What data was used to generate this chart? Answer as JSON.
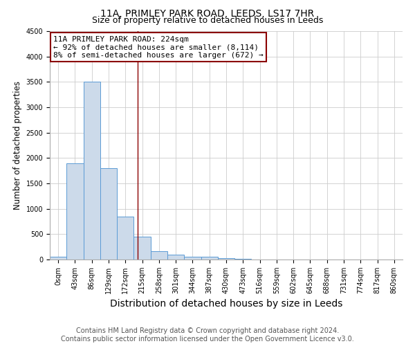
{
  "title": "11A, PRIMLEY PARK ROAD, LEEDS, LS17 7HR",
  "subtitle": "Size of property relative to detached houses in Leeds",
  "xlabel": "Distribution of detached houses by size in Leeds",
  "ylabel": "Number of detached properties",
  "categories": [
    "0sqm",
    "43sqm",
    "86sqm",
    "129sqm",
    "172sqm",
    "215sqm",
    "258sqm",
    "301sqm",
    "344sqm",
    "387sqm",
    "430sqm",
    "473sqm",
    "516sqm",
    "559sqm",
    "602sqm",
    "645sqm",
    "688sqm",
    "731sqm",
    "774sqm",
    "817sqm",
    "860sqm"
  ],
  "values": [
    50,
    1900,
    3500,
    1800,
    850,
    450,
    160,
    100,
    60,
    50,
    30,
    20,
    0,
    0,
    0,
    0,
    0,
    0,
    0,
    0,
    0
  ],
  "bar_color": "#ccdaea",
  "bar_edge_color": "#5b9bd5",
  "vline_x_idx": 5.23,
  "vline_color": "#8b0000",
  "annotation_text": "11A PRIMLEY PARK ROAD: 224sqm\n← 92% of detached houses are smaller (8,114)\n8% of semi-detached houses are larger (672) →",
  "annotation_box_color": "#ffffff",
  "annotation_box_edge": "#8b0000",
  "ylim": [
    0,
    4500
  ],
  "yticks": [
    0,
    500,
    1000,
    1500,
    2000,
    2500,
    3000,
    3500,
    4000,
    4500
  ],
  "footer": "Contains HM Land Registry data © Crown copyright and database right 2024.\nContains public sector information licensed under the Open Government Licence v3.0.",
  "title_fontsize": 10,
  "subtitle_fontsize": 9,
  "xlabel_fontsize": 10,
  "ylabel_fontsize": 8.5,
  "tick_fontsize": 7,
  "footer_fontsize": 7,
  "annotation_fontsize": 8,
  "background_color": "#ffffff",
  "grid_color": "#cccccc"
}
